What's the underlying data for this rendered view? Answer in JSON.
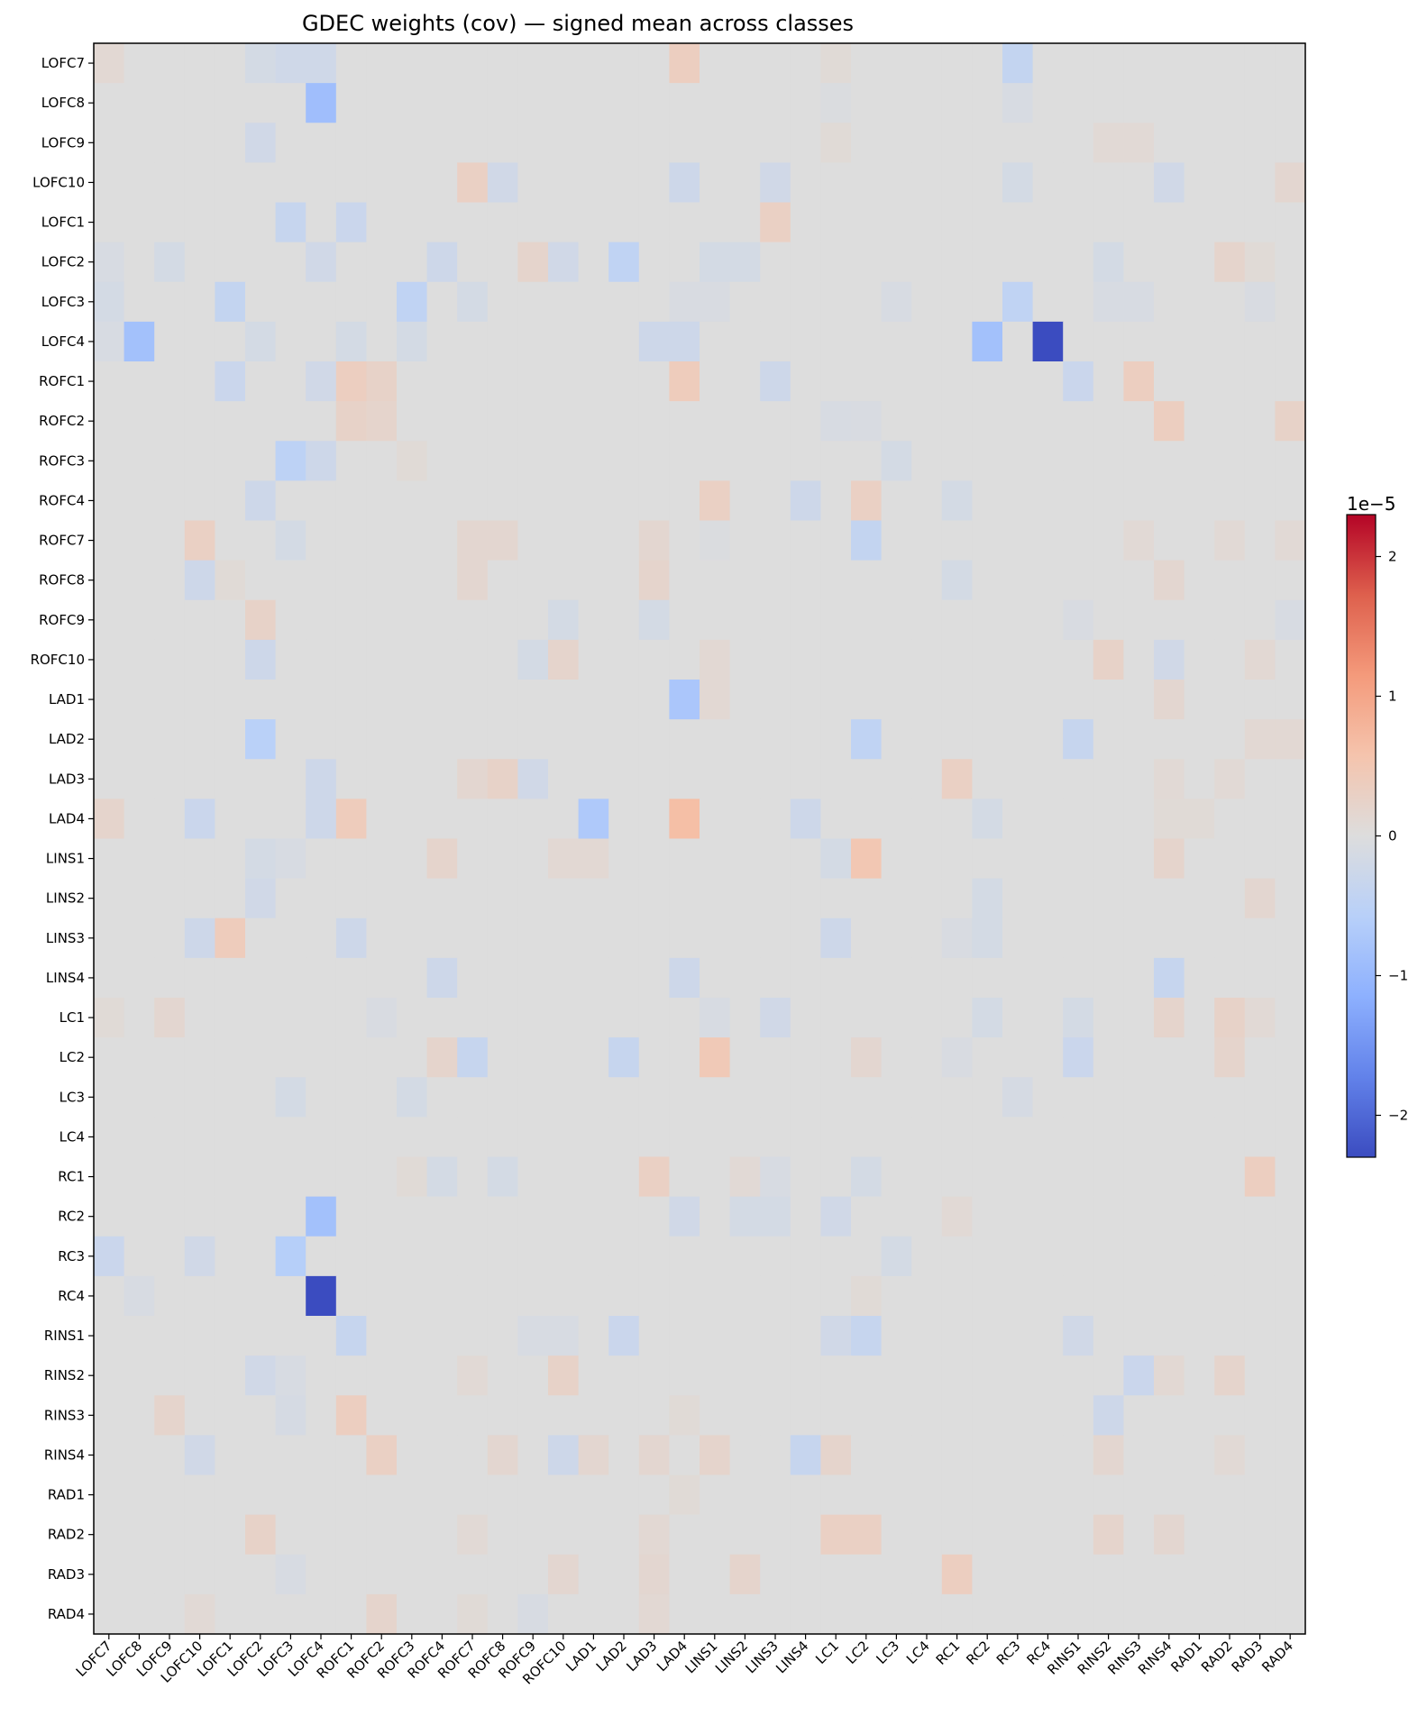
{
  "chart_data": {
    "type": "heatmap",
    "title": "GDEC weights (cov) — signed mean across classes",
    "labels": [
      "LOFC7",
      "LOFC8",
      "LOFC9",
      "LOFC10",
      "LOFC1",
      "LOFC2",
      "LOFC3",
      "LOFC4",
      "ROFC1",
      "ROFC2",
      "ROFC3",
      "ROFC4",
      "ROFC7",
      "ROFC8",
      "ROFC9",
      "ROFC10",
      "LAD1",
      "LAD2",
      "LAD3",
      "LAD4",
      "LINS1",
      "LINS2",
      "LINS3",
      "LINS4",
      "LC1",
      "LC2",
      "LC3",
      "LC4",
      "RC1",
      "RC2",
      "RC3",
      "RC4",
      "RINS1",
      "RINS2",
      "RINS3",
      "RINS4",
      "RAD1",
      "RAD2",
      "RAD3",
      "RAD4"
    ],
    "value_scale": "1e−5",
    "colormap": "coolwarm",
    "vmin": -2.3,
    "vmax": 2.3,
    "colorbar_ticks": [
      "2",
      "1",
      "0",
      "−1",
      "−2"
    ],
    "colorbar_tick_values": [
      2,
      1,
      0,
      -1,
      -2
    ],
    "default_value": 0,
    "cells": [
      [
        0,
        0,
        0.12
      ],
      [
        0,
        5,
        -0.15
      ],
      [
        0,
        6,
        -0.22
      ],
      [
        0,
        7,
        -0.22
      ],
      [
        0,
        19,
        0.35
      ],
      [
        0,
        24,
        0.08
      ],
      [
        0,
        30,
        -0.4
      ],
      [
        1,
        7,
        -0.9
      ],
      [
        1,
        30,
        -0.1
      ],
      [
        1,
        24,
        -0.05
      ],
      [
        2,
        5,
        -0.2
      ],
      [
        2,
        24,
        0.08
      ],
      [
        2,
        33,
        0.1
      ],
      [
        2,
        34,
        0.1
      ],
      [
        3,
        12,
        0.3
      ],
      [
        3,
        13,
        -0.2
      ],
      [
        3,
        19,
        -0.25
      ],
      [
        3,
        22,
        -0.2
      ],
      [
        3,
        30,
        -0.15
      ],
      [
        3,
        35,
        -0.2
      ],
      [
        3,
        39,
        0.15
      ],
      [
        4,
        6,
        -0.35
      ],
      [
        4,
        8,
        -0.3
      ],
      [
        4,
        22,
        0.3
      ],
      [
        5,
        0,
        -0.1
      ],
      [
        5,
        2,
        -0.15
      ],
      [
        5,
        7,
        -0.2
      ],
      [
        5,
        11,
        -0.25
      ],
      [
        5,
        14,
        0.2
      ],
      [
        5,
        15,
        -0.2
      ],
      [
        5,
        17,
        -0.45
      ],
      [
        5,
        20,
        -0.15
      ],
      [
        5,
        21,
        -0.15
      ],
      [
        5,
        33,
        -0.15
      ],
      [
        5,
        37,
        0.2
      ],
      [
        5,
        38,
        0.08
      ],
      [
        6,
        0,
        -0.15
      ],
      [
        6,
        4,
        -0.4
      ],
      [
        6,
        10,
        -0.45
      ],
      [
        6,
        12,
        -0.15
      ],
      [
        6,
        19,
        -0.08
      ],
      [
        6,
        20,
        -0.08
      ],
      [
        6,
        26,
        -0.1
      ],
      [
        6,
        30,
        -0.45
      ],
      [
        6,
        33,
        -0.1
      ],
      [
        6,
        34,
        -0.1
      ],
      [
        6,
        38,
        -0.08
      ],
      [
        7,
        0,
        -0.1
      ],
      [
        7,
        1,
        -0.85
      ],
      [
        7,
        5,
        -0.15
      ],
      [
        7,
        8,
        -0.15
      ],
      [
        7,
        10,
        -0.15
      ],
      [
        7,
        18,
        -0.25
      ],
      [
        7,
        19,
        -0.25
      ],
      [
        7,
        29,
        -0.85
      ],
      [
        7,
        31,
        -2.3
      ],
      [
        8,
        4,
        -0.3
      ],
      [
        8,
        7,
        -0.2
      ],
      [
        8,
        8,
        0.35
      ],
      [
        8,
        9,
        0.25
      ],
      [
        8,
        19,
        0.4
      ],
      [
        8,
        22,
        -0.25
      ],
      [
        8,
        32,
        -0.3
      ],
      [
        8,
        34,
        0.35
      ],
      [
        9,
        8,
        0.25
      ],
      [
        9,
        9,
        0.2
      ],
      [
        9,
        24,
        -0.1
      ],
      [
        9,
        25,
        -0.08
      ],
      [
        9,
        35,
        0.35
      ],
      [
        9,
        39,
        0.25
      ],
      [
        10,
        6,
        -0.5
      ],
      [
        10,
        7,
        -0.25
      ],
      [
        10,
        10,
        0.08
      ],
      [
        10,
        26,
        -0.15
      ],
      [
        11,
        5,
        -0.25
      ],
      [
        11,
        20,
        0.3
      ],
      [
        11,
        23,
        -0.25
      ],
      [
        11,
        25,
        0.3
      ],
      [
        11,
        28,
        -0.15
      ],
      [
        12,
        3,
        0.3
      ],
      [
        12,
        6,
        -0.15
      ],
      [
        12,
        12,
        0.15
      ],
      [
        12,
        13,
        0.15
      ],
      [
        12,
        18,
        0.15
      ],
      [
        12,
        20,
        -0.05
      ],
      [
        12,
        25,
        -0.4
      ],
      [
        12,
        34,
        0.1
      ],
      [
        12,
        37,
        0.1
      ],
      [
        12,
        39,
        0.1
      ],
      [
        13,
        3,
        -0.25
      ],
      [
        13,
        4,
        0.08
      ],
      [
        13,
        12,
        0.15
      ],
      [
        13,
        18,
        0.2
      ],
      [
        13,
        28,
        -0.15
      ],
      [
        13,
        35,
        0.15
      ],
      [
        14,
        5,
        0.25
      ],
      [
        14,
        15,
        -0.15
      ],
      [
        14,
        18,
        -0.15
      ],
      [
        14,
        32,
        -0.08
      ],
      [
        14,
        39,
        -0.1
      ],
      [
        15,
        5,
        -0.25
      ],
      [
        15,
        14,
        -0.15
      ],
      [
        15,
        15,
        0.2
      ],
      [
        15,
        20,
        0.12
      ],
      [
        15,
        33,
        0.25
      ],
      [
        15,
        35,
        -0.2
      ],
      [
        15,
        38,
        0.12
      ],
      [
        16,
        19,
        -0.75
      ],
      [
        16,
        20,
        0.12
      ],
      [
        16,
        35,
        0.15
      ],
      [
        17,
        5,
        -0.55
      ],
      [
        17,
        25,
        -0.45
      ],
      [
        17,
        32,
        -0.35
      ],
      [
        17,
        38,
        0.12
      ],
      [
        17,
        39,
        0.12
      ],
      [
        18,
        7,
        -0.25
      ],
      [
        18,
        12,
        0.15
      ],
      [
        18,
        13,
        0.25
      ],
      [
        18,
        14,
        -0.2
      ],
      [
        18,
        28,
        0.3
      ],
      [
        18,
        35,
        0.1
      ],
      [
        18,
        37,
        0.1
      ],
      [
        19,
        0,
        0.2
      ],
      [
        19,
        3,
        -0.3
      ],
      [
        19,
        7,
        -0.25
      ],
      [
        19,
        8,
        0.4
      ],
      [
        19,
        16,
        -0.7
      ],
      [
        19,
        19,
        0.65
      ],
      [
        19,
        23,
        -0.25
      ],
      [
        19,
        29,
        -0.15
      ],
      [
        19,
        35,
        0.08
      ],
      [
        19,
        36,
        0.08
      ],
      [
        20,
        5,
        -0.15
      ],
      [
        20,
        6,
        -0.1
      ],
      [
        20,
        11,
        0.2
      ],
      [
        20,
        15,
        0.12
      ],
      [
        20,
        16,
        0.12
      ],
      [
        20,
        24,
        -0.15
      ],
      [
        20,
        25,
        0.5
      ],
      [
        20,
        35,
        0.2
      ],
      [
        21,
        5,
        -0.2
      ],
      [
        21,
        29,
        -0.15
      ],
      [
        21,
        38,
        0.15
      ],
      [
        22,
        3,
        -0.25
      ],
      [
        22,
        4,
        0.4
      ],
      [
        22,
        8,
        -0.25
      ],
      [
        22,
        24,
        -0.25
      ],
      [
        22,
        28,
        -0.08
      ],
      [
        22,
        29,
        -0.15
      ],
      [
        23,
        11,
        -0.25
      ],
      [
        23,
        19,
        -0.25
      ],
      [
        23,
        35,
        -0.35
      ],
      [
        24,
        0,
        0.08
      ],
      [
        24,
        2,
        0.15
      ],
      [
        24,
        9,
        -0.08
      ],
      [
        24,
        20,
        -0.1
      ],
      [
        24,
        22,
        -0.2
      ],
      [
        24,
        29,
        -0.15
      ],
      [
        24,
        32,
        -0.15
      ],
      [
        24,
        35,
        0.2
      ],
      [
        24,
        37,
        0.25
      ],
      [
        24,
        38,
        0.1
      ],
      [
        25,
        11,
        0.2
      ],
      [
        25,
        12,
        -0.35
      ],
      [
        25,
        17,
        -0.35
      ],
      [
        25,
        20,
        0.45
      ],
      [
        25,
        25,
        0.15
      ],
      [
        25,
        28,
        -0.08
      ],
      [
        25,
        32,
        -0.3
      ],
      [
        25,
        37,
        0.2
      ],
      [
        26,
        6,
        -0.15
      ],
      [
        26,
        10,
        -0.15
      ],
      [
        26,
        30,
        -0.12
      ],
      [
        28,
        10,
        0.08
      ],
      [
        28,
        11,
        -0.15
      ],
      [
        28,
        13,
        -0.15
      ],
      [
        28,
        18,
        0.3
      ],
      [
        28,
        21,
        0.1
      ],
      [
        28,
        22,
        -0.1
      ],
      [
        28,
        25,
        -0.15
      ],
      [
        28,
        38,
        0.35
      ],
      [
        29,
        7,
        -0.85
      ],
      [
        29,
        19,
        -0.2
      ],
      [
        29,
        21,
        -0.15
      ],
      [
        29,
        22,
        -0.15
      ],
      [
        29,
        24,
        -0.2
      ],
      [
        29,
        28,
        0.1
      ],
      [
        30,
        0,
        -0.3
      ],
      [
        30,
        3,
        -0.2
      ],
      [
        30,
        6,
        -0.6
      ],
      [
        30,
        26,
        -0.15
      ],
      [
        31,
        1,
        -0.1
      ],
      [
        31,
        7,
        -2.3
      ],
      [
        31,
        25,
        0.08
      ],
      [
        32,
        8,
        -0.35
      ],
      [
        32,
        14,
        -0.1
      ],
      [
        32,
        15,
        -0.1
      ],
      [
        32,
        17,
        -0.3
      ],
      [
        32,
        24,
        -0.2
      ],
      [
        32,
        25,
        -0.35
      ],
      [
        32,
        32,
        -0.2
      ],
      [
        33,
        5,
        -0.2
      ],
      [
        33,
        6,
        -0.1
      ],
      [
        33,
        12,
        0.1
      ],
      [
        33,
        15,
        0.25
      ],
      [
        33,
        34,
        -0.3
      ],
      [
        33,
        35,
        0.12
      ],
      [
        33,
        37,
        0.2
      ],
      [
        34,
        2,
        0.2
      ],
      [
        34,
        6,
        -0.12
      ],
      [
        34,
        8,
        0.35
      ],
      [
        34,
        19,
        0.08
      ],
      [
        34,
        33,
        -0.25
      ],
      [
        35,
        3,
        -0.2
      ],
      [
        35,
        9,
        0.3
      ],
      [
        35,
        13,
        0.15
      ],
      [
        35,
        15,
        -0.25
      ],
      [
        35,
        16,
        0.15
      ],
      [
        35,
        18,
        0.15
      ],
      [
        35,
        20,
        0.2
      ],
      [
        35,
        23,
        -0.35
      ],
      [
        35,
        24,
        0.2
      ],
      [
        35,
        33,
        0.15
      ],
      [
        35,
        37,
        0.1
      ],
      [
        36,
        19,
        0.08
      ],
      [
        37,
        5,
        0.25
      ],
      [
        37,
        12,
        0.1
      ],
      [
        37,
        18,
        0.12
      ],
      [
        37,
        24,
        0.3
      ],
      [
        37,
        25,
        0.3
      ],
      [
        37,
        33,
        0.2
      ],
      [
        37,
        35,
        0.15
      ],
      [
        38,
        6,
        -0.1
      ],
      [
        38,
        15,
        0.15
      ],
      [
        38,
        18,
        0.15
      ],
      [
        38,
        21,
        0.2
      ],
      [
        38,
        28,
        0.35
      ],
      [
        39,
        3,
        0.1
      ],
      [
        39,
        9,
        0.2
      ],
      [
        39,
        12,
        0.08
      ],
      [
        39,
        14,
        -0.1
      ],
      [
        39,
        18,
        0.12
      ]
    ]
  }
}
